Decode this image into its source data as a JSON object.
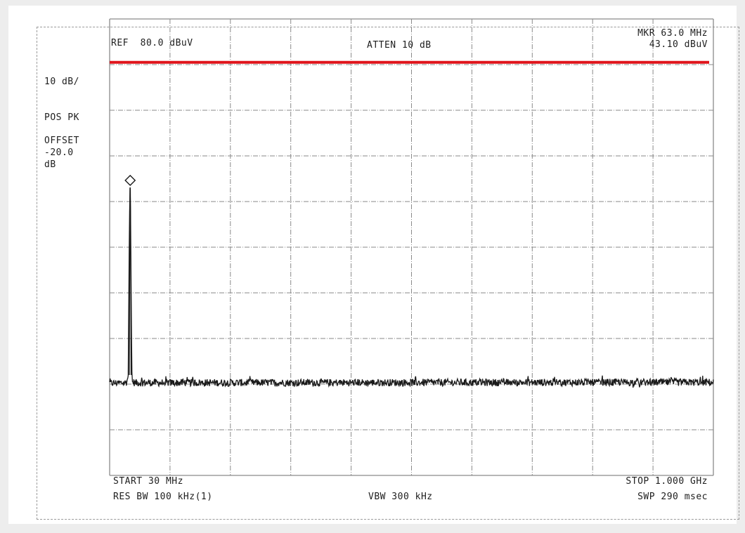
{
  "header": {
    "ref": "REF  80.0 dBuV",
    "atten": "ATTEN 10 dB",
    "marker_freq": "MKR 63.0 MHz",
    "marker_level": "43.10 dBuV"
  },
  "left_panel": {
    "scale": "10 dB/",
    "detector": "POS PK",
    "offset_label": "OFFSET",
    "offset_value": "-20.0",
    "offset_unit": "dB"
  },
  "footer": {
    "start": "START 30 MHz",
    "stop": "STOP 1.000 GHz",
    "res_bw": "RES BW 100 kHz(1)",
    "vbw": "VBW 300 kHz",
    "sweep": "SWP 290 msec"
  },
  "colors": {
    "limit_line": "#e0141b",
    "trace": "#1a1a1a",
    "grid": "#8a8a8a"
  },
  "chart_data": {
    "type": "line",
    "x_unit": "MHz",
    "y_unit": "dBuV",
    "xlim": [
      30,
      1000
    ],
    "ylim": [
      -20,
      80
    ],
    "grid": true,
    "divisions": {
      "x": 10,
      "y": 10
    },
    "limit_line": {
      "y": 70.5
    },
    "marker": {
      "x": 63.0,
      "y": 43.1
    },
    "noise_floor": 0.3,
    "series": [
      {
        "points": [
          [
            30,
            0.2
          ],
          [
            55,
            0.3
          ],
          [
            58,
            0.5
          ],
          [
            60,
            2.0
          ],
          [
            61,
            25.0
          ],
          [
            62.5,
            42.5
          ],
          [
            63.0,
            43.1
          ],
          [
            63.5,
            40.0
          ],
          [
            65,
            12.0
          ],
          [
            66,
            0.6
          ],
          [
            70,
            0.3
          ],
          [
            1000,
            0.4
          ]
        ]
      }
    ]
  }
}
